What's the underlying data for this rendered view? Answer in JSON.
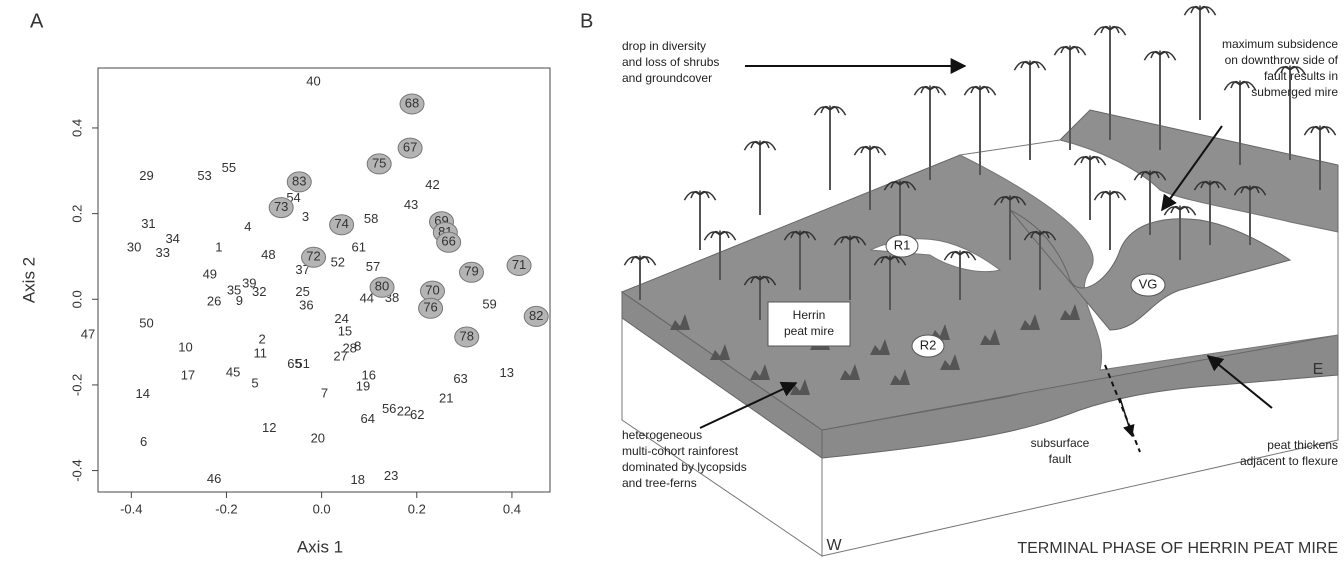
{
  "panel_labels": [
    "A",
    "B"
  ],
  "chart_data": {
    "type": "scatter",
    "xlabel": "Axis 1",
    "ylabel": "Axis 2",
    "xlim": [
      -0.47,
      0.48
    ],
    "ylim": [
      -0.45,
      0.54
    ],
    "xticks": [
      -0.4,
      -0.2,
      {
        "value": 0,
        "label": "0.0"
      },
      0.2,
      0.4
    ],
    "yticks": [
      -0.4,
      -0.2,
      {
        "value": 0,
        "label": "0.0"
      },
      0.2,
      0.4
    ],
    "text_color": "#333333",
    "series": [
      {
        "labels": [
          "40",
          "29",
          "53",
          "55",
          "42",
          "54",
          "3",
          "58",
          "43",
          "31",
          "34",
          "4",
          "1",
          "30",
          "33",
          "48",
          "61",
          "52",
          "57",
          "37",
          "49",
          "39",
          "35",
          "32",
          "26",
          "9",
          "25",
          "36",
          "44",
          "38",
          "59",
          "47",
          "50",
          "24",
          "15",
          "2",
          "10",
          "11",
          "28",
          "8",
          "27",
          "65",
          "51",
          "17",
          "45",
          "5",
          "16",
          "19",
          "63",
          "13",
          "14",
          "7",
          "21",
          "56",
          "22",
          "62",
          "64",
          "12",
          "20",
          "6",
          "46",
          "18",
          "23"
        ],
        "x": [
          -0.017,
          -0.368,
          -0.246,
          -0.195,
          0.233,
          -0.059,
          -0.034,
          0.104,
          0.188,
          -0.364,
          -0.313,
          -0.155,
          -0.216,
          -0.394,
          -0.334,
          -0.112,
          0.078,
          0.034,
          0.108,
          -0.04,
          -0.235,
          -0.152,
          -0.184,
          -0.131,
          -0.226,
          -0.173,
          -0.04,
          -0.032,
          0.095,
          0.148,
          0.353,
          -0.491,
          -0.368,
          0.042,
          0.049,
          -0.125,
          -0.286,
          -0.129,
          0.059,
          0.076,
          0.04,
          -0.057,
          -0.04,
          -0.281,
          -0.186,
          -0.14,
          0.099,
          0.087,
          0.292,
          0.389,
          -0.376,
          0.006,
          0.262,
          0.142,
          0.173,
          0.201,
          0.097,
          -0.11,
          -0.008,
          -0.374,
          -0.226,
          0.076,
          0.146
        ],
        "y": [
          0.507,
          0.286,
          0.286,
          0.305,
          0.265,
          0.235,
          0.191,
          0.186,
          0.219,
          0.174,
          0.14,
          0.167,
          0.119,
          0.119,
          0.107,
          0.102,
          0.119,
          0.084,
          0.074,
          0.067,
          0.056,
          0.035,
          0.019,
          0.016,
          -0.007,
          -0.005,
          0.016,
          -0.016,
          0.0,
          0.002,
          -0.014,
          -0.084,
          -0.058,
          -0.047,
          -0.077,
          -0.095,
          -0.114,
          -0.128,
          -0.116,
          -0.112,
          -0.135,
          -0.153,
          -0.153,
          -0.179,
          -0.172,
          -0.198,
          -0.179,
          -0.205,
          -0.188,
          -0.174,
          -0.223,
          -0.221,
          -0.233,
          -0.258,
          -0.263,
          -0.272,
          -0.281,
          -0.302,
          -0.326,
          -0.335,
          -0.421,
          -0.423,
          -0.414
        ]
      },
      {
        "fill": "#b4b4b4",
        "labels": [
          "68",
          "67",
          "75",
          "83",
          "73",
          "74",
          "69",
          "81",
          "66",
          "72",
          "80",
          "70",
          "76",
          "79",
          "71",
          "82",
          "78"
        ],
        "x": [
          0.19,
          0.186,
          0.121,
          -0.047,
          -0.085,
          0.042,
          0.252,
          0.26,
          0.267,
          -0.017,
          0.127,
          0.233,
          0.229,
          0.315,
          0.415,
          0.451,
          0.305
        ],
        "y": [
          0.456,
          0.353,
          0.316,
          0.274,
          0.214,
          0.174,
          0.181,
          0.156,
          0.133,
          0.098,
          0.028,
          0.019,
          -0.021,
          0.063,
          0.079,
          -0.04,
          -0.088
        ]
      }
    ]
  },
  "diagram": {
    "top_left_note": [
      "drop in diversity",
      "and loss of shrubs",
      "and groundcover"
    ],
    "top_right_note": [
      "maximum subsidence",
      "on downthrow side of",
      "fault results in",
      "submerged mire"
    ],
    "site_labels": [
      "R1",
      "R2",
      "VG"
    ],
    "mire_label": [
      "Herrin",
      "peat mire"
    ],
    "forest_note": [
      "heterogeneous",
      "multi-cohort rainforest",
      "dominated by lycopsids",
      "and tree-ferns"
    ],
    "fault_label": [
      "subsurface",
      "fault"
    ],
    "peat_note": [
      "peat thickens",
      "adjacent to flexure"
    ],
    "east": "E",
    "west": "W",
    "caption": "TERMINAL PHASE OF HERRIN PEAT MIRE"
  }
}
